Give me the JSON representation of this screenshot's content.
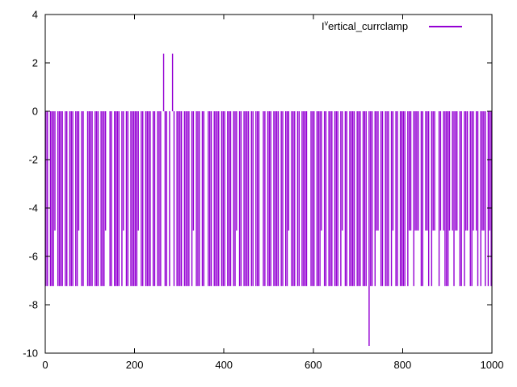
{
  "figure": {
    "background": "#ffffff",
    "border_color": "#000000",
    "tick_label_color": "#000000"
  },
  "legend": {
    "label_prefix": "I",
    "label_sup": "v",
    "label_rest": "ertical_currclamp",
    "line_color": "#9400d3",
    "position": "top-right"
  },
  "chart_data": {
    "type": "bar",
    "subtype": "impulses",
    "title": "",
    "series_name": "I^vertical_currclamp",
    "xlabel": "",
    "ylabel": "",
    "xlim": [
      0,
      1000
    ],
    "ylim": [
      -10,
      4
    ],
    "xticks": [
      0,
      200,
      400,
      600,
      800,
      1000
    ],
    "yticks": [
      4,
      2,
      0,
      -2,
      -4,
      -6,
      -8,
      -10
    ],
    "grid": false,
    "legend_position": "top-right-inside",
    "line_color": "#9400d3",
    "baseline": 0,
    "levels": {
      "a": -7.23,
      "b": -4.93,
      "P": 2.38,
      "N": -9.7
    },
    "pattern": "aa.aaab.aaaa.aa.aaa.aab.aa..aaaa.aaa.aaab..aa.aaaa.ab.aa.aaaaab.aa.aaaa.aa.aaa.Paa.a.Pa.aaaa.aaaa.ab.aaa.aa..aaa.aaaa.aaa.aaa.aab.aa.aaaa.aa.aaa..aa.aaa.aaaa.aa.aab.aaa.aa.aaaa..aaa.aaab.aa.aaa.aaa.ab.aa.aaaa.aaa.aaa.Naa.abb.aa.aaa.ab.aa.aaaa.abb.abbb.aa.bba.abb..ab.baaab.babb.aa.abb.aab.ba.abba.aba",
    "notable_points": [
      {
        "x": 265,
        "y": 2.38
      },
      {
        "x": 285,
        "y": 2.38
      },
      {
        "x": 725,
        "y": -9.7
      }
    ]
  }
}
